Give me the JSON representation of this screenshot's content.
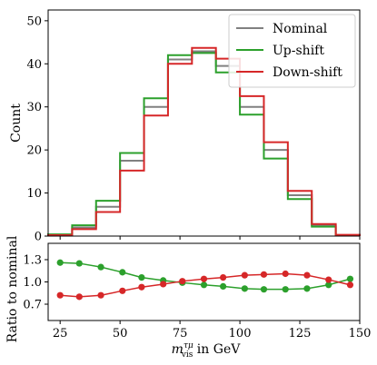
{
  "chart_data": [
    {
      "type": "step",
      "ylabel": "Count",
      "ylim": [
        0,
        52.5
      ],
      "yticks": [
        0,
        10,
        20,
        30,
        40,
        50
      ],
      "xlim": [
        20,
        150
      ],
      "bin_edges": [
        20,
        30,
        40,
        50,
        60,
        70,
        80,
        90,
        100,
        110,
        120,
        130,
        140,
        150
      ],
      "legend": {
        "placement": "top-right"
      },
      "series": [
        {
          "name": "Nominal",
          "color": "#808080",
          "values": [
            0.3,
            2.0,
            6.8,
            17.5,
            30.0,
            41.0,
            42.9,
            39.5,
            30.0,
            20.0,
            9.5,
            2.5,
            0.2
          ]
        },
        {
          "name": "Up-shift",
          "color": "#2ca02c",
          "values": [
            0.4,
            2.5,
            8.2,
            19.3,
            32.0,
            42.0,
            42.5,
            38.0,
            28.2,
            18.0,
            8.6,
            2.2,
            0.2
          ]
        },
        {
          "name": "Down-shift",
          "color": "#d62728",
          "values": [
            0.2,
            1.6,
            5.6,
            15.2,
            28.0,
            40.0,
            43.7,
            41.2,
            32.5,
            21.8,
            10.5,
            2.8,
            0.3
          ]
        }
      ]
    },
    {
      "type": "line",
      "ylabel": "Ratio to nominal",
      "xlabel": "m_vis^{τμ} in GeV",
      "xlim": [
        20,
        150
      ],
      "ylim": [
        0.48,
        1.52
      ],
      "xticks": [
        25,
        50,
        75,
        100,
        125,
        150
      ],
      "yticks": [
        0.7,
        1.0,
        1.3
      ],
      "ytick_labels": [
        "0.7",
        "1.0",
        "1.3"
      ],
      "x": [
        25,
        33,
        42,
        51,
        59,
        68,
        76,
        85,
        93,
        102,
        110,
        119,
        128,
        137,
        146
      ],
      "series": [
        {
          "name": "Up-shift",
          "color": "#2ca02c",
          "values": [
            1.26,
            1.25,
            1.2,
            1.13,
            1.06,
            1.02,
            0.99,
            0.96,
            0.94,
            0.91,
            0.9,
            0.9,
            0.91,
            0.96,
            1.04
          ]
        },
        {
          "name": "Down-shift",
          "color": "#d62728",
          "values": [
            0.82,
            0.8,
            0.82,
            0.88,
            0.93,
            0.97,
            1.01,
            1.04,
            1.06,
            1.09,
            1.1,
            1.11,
            1.09,
            1.03,
            0.96
          ]
        }
      ]
    }
  ]
}
